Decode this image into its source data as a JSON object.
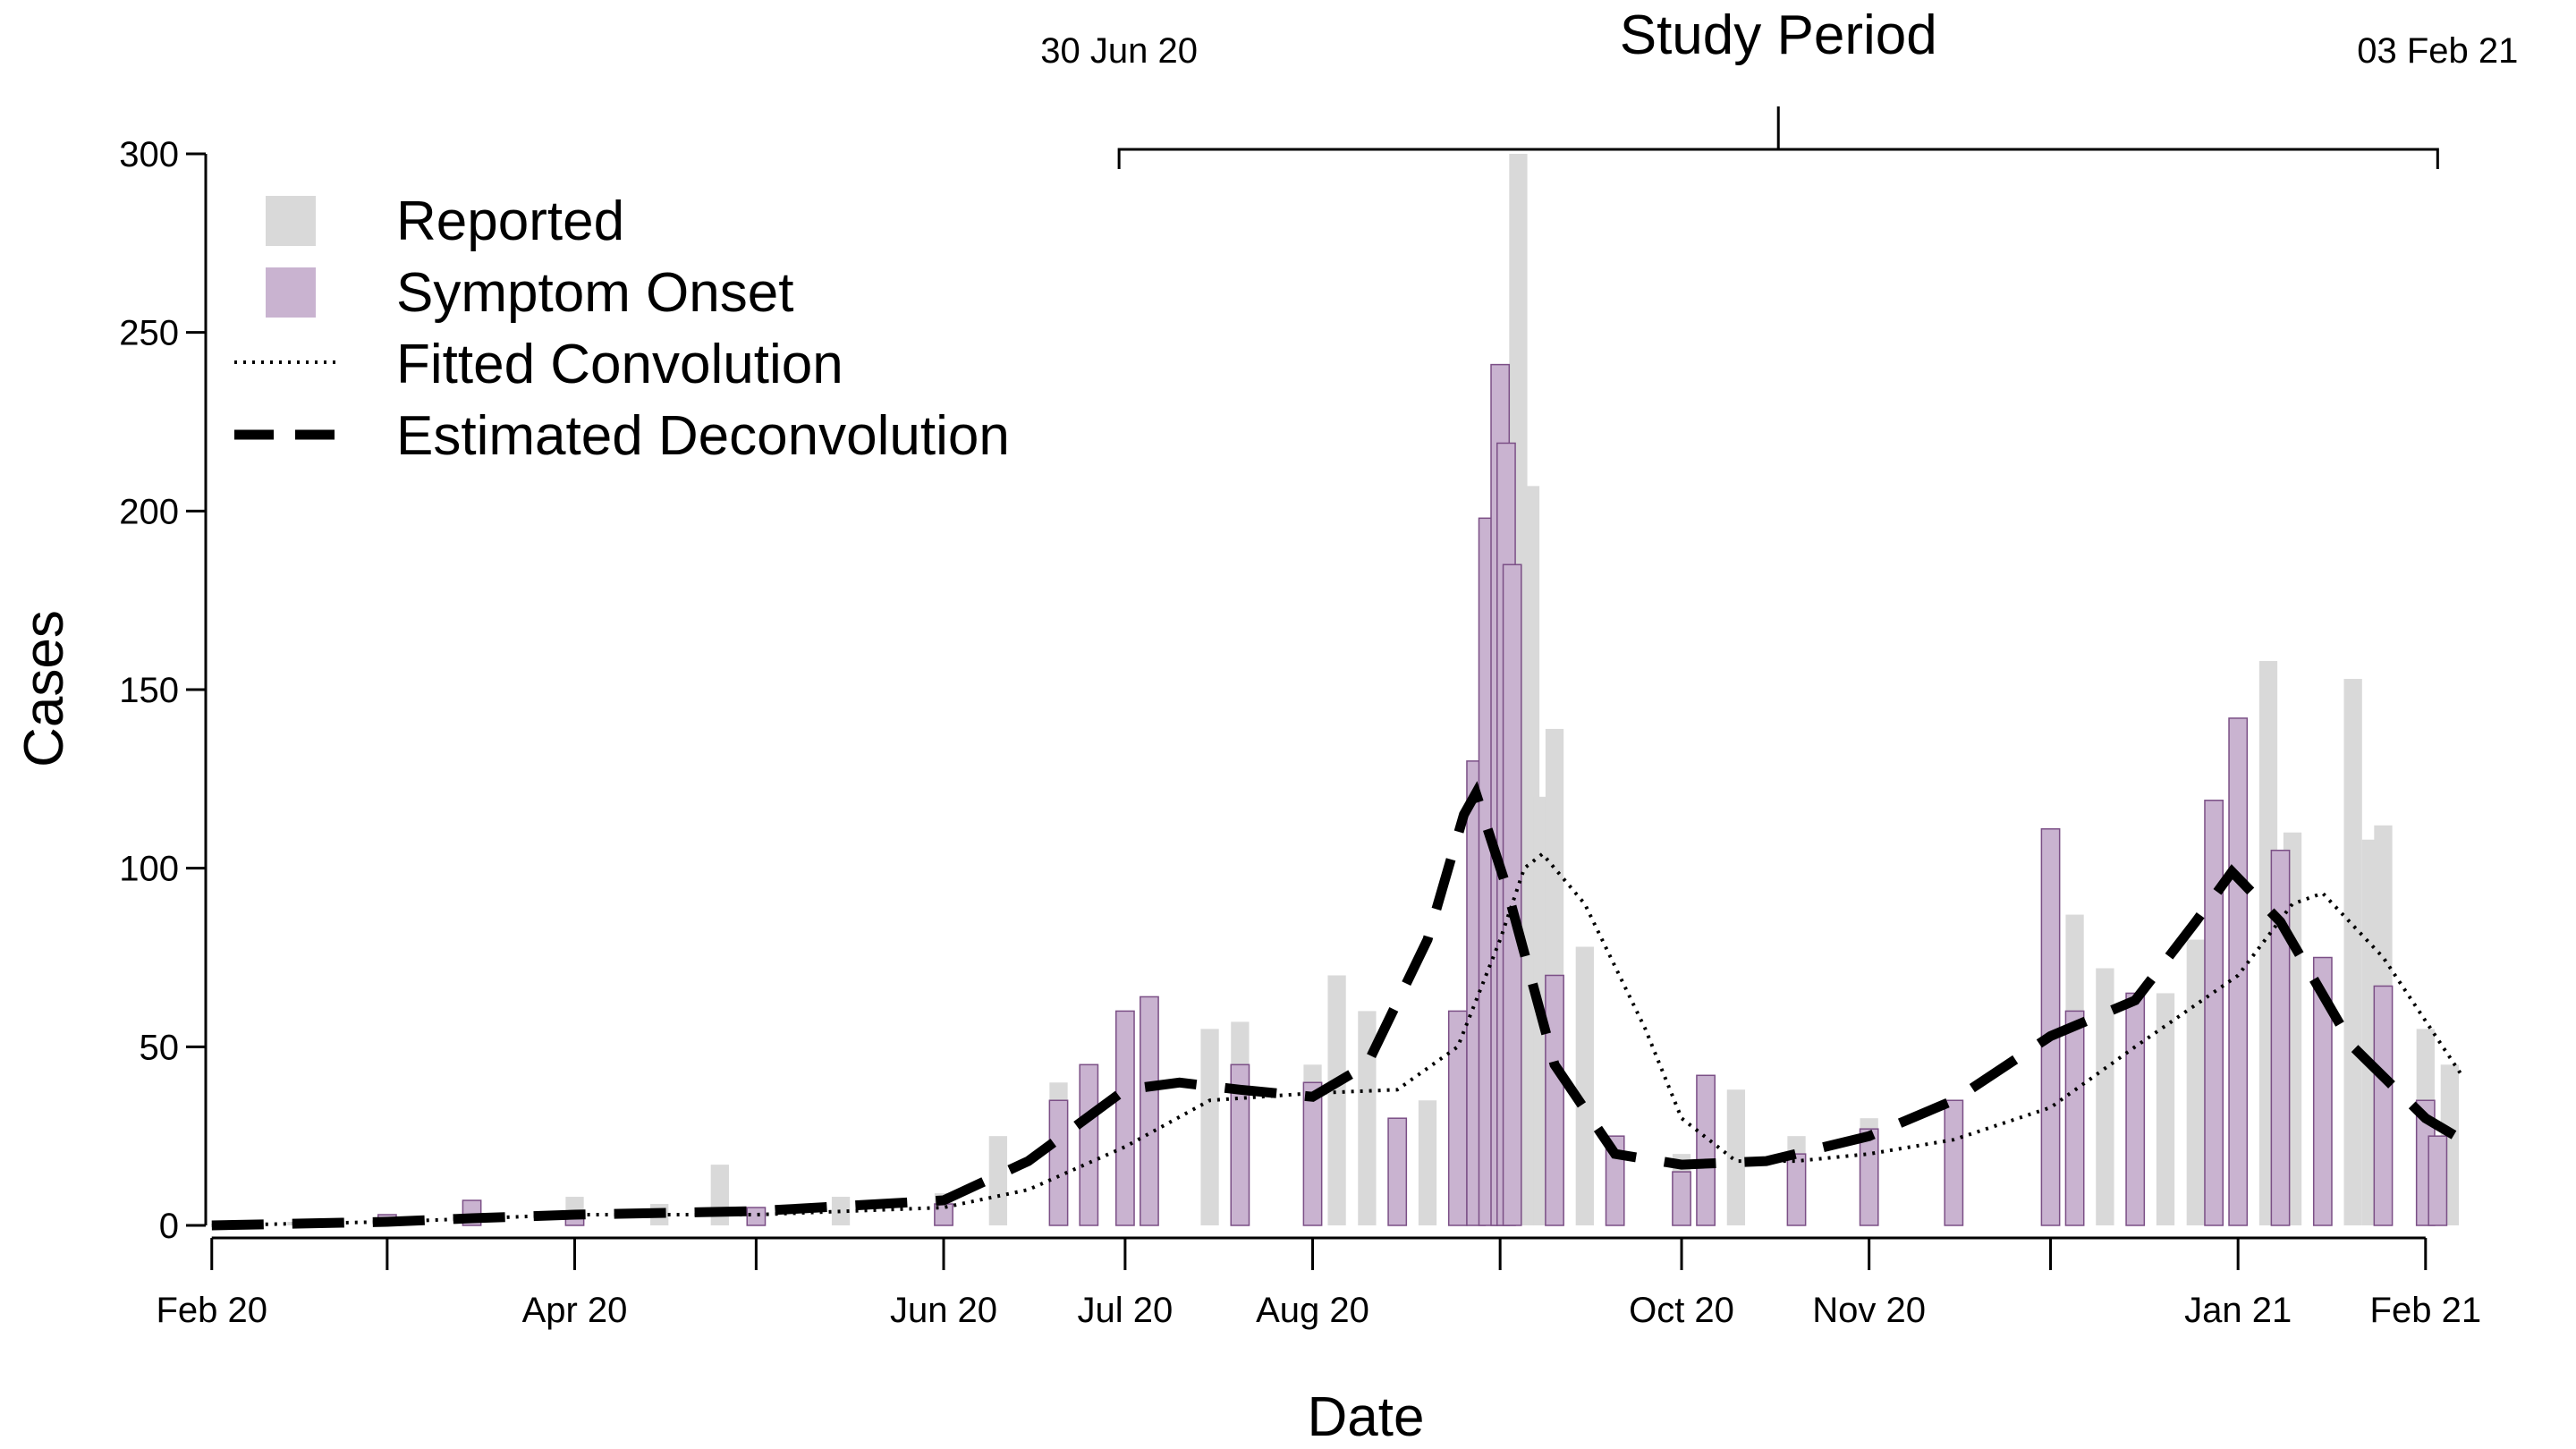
{
  "chart_data": {
    "type": "bar",
    "xlabel": "Date",
    "ylabel": "Cases",
    "xlim": [
      "2020-01-31",
      "2021-02-17"
    ],
    "ylim": [
      0,
      300
    ],
    "y_ticks": [
      0,
      50,
      100,
      150,
      200,
      250,
      300
    ],
    "x_tick_labels": [
      {
        "date": "2020-02-01",
        "label": "Feb 20"
      },
      {
        "date": "2020-03-01",
        "label": ""
      },
      {
        "date": "2020-04-01",
        "label": "Apr 20"
      },
      {
        "date": "2020-05-01",
        "label": ""
      },
      {
        "date": "2020-06-01",
        "label": "Jun 20"
      },
      {
        "date": "2020-07-01",
        "label": "Jul 20"
      },
      {
        "date": "2020-08-01",
        "label": "Aug 20"
      },
      {
        "date": "2020-09-01",
        "label": ""
      },
      {
        "date": "2020-10-01",
        "label": "Oct 20"
      },
      {
        "date": "2020-11-01",
        "label": "Nov 20"
      },
      {
        "date": "2020-12-01",
        "label": ""
      },
      {
        "date": "2021-01-01",
        "label": "Jan 21"
      },
      {
        "date": "2021-02-01",
        "label": "Feb 21"
      }
    ],
    "study_period": {
      "title": "Study Period",
      "start": "2020-06-30",
      "end": "2021-02-03",
      "start_label": "30 Jun 20",
      "end_label": "03 Feb 21"
    },
    "legend": {
      "placement": "top-left",
      "entries": [
        {
          "label": "Reported",
          "kind": "bar"
        },
        {
          "label": "Symptom Onset",
          "kind": "bar"
        },
        {
          "label": "Fitted Convolution",
          "kind": "dotted"
        },
        {
          "label": "Estimated Deconvolution",
          "kind": "dashed"
        }
      ]
    },
    "colors": {
      "reported": "#d9d9d9",
      "onset_fill": "#c9b3d0",
      "onset_stroke": "#7b4f86",
      "lines": "#000000"
    },
    "series": [
      {
        "name": "Reported",
        "type": "bar",
        "values": [
          {
            "x": "2020-02-01",
            "y": 0
          },
          {
            "x": "2020-02-15",
            "y": 1
          },
          {
            "x": "2020-03-01",
            "y": 2
          },
          {
            "x": "2020-03-15",
            "y": 5
          },
          {
            "x": "2020-04-01",
            "y": 8
          },
          {
            "x": "2020-04-15",
            "y": 6
          },
          {
            "x": "2020-04-25",
            "y": 17
          },
          {
            "x": "2020-05-01",
            "y": 5
          },
          {
            "x": "2020-05-15",
            "y": 8
          },
          {
            "x": "2020-06-01",
            "y": 9
          },
          {
            "x": "2020-06-10",
            "y": 25
          },
          {
            "x": "2020-06-20",
            "y": 40
          },
          {
            "x": "2020-07-01",
            "y": 45
          },
          {
            "x": "2020-07-15",
            "y": 55
          },
          {
            "x": "2020-07-20",
            "y": 57
          },
          {
            "x": "2020-08-01",
            "y": 45
          },
          {
            "x": "2020-08-05",
            "y": 70
          },
          {
            "x": "2020-08-10",
            "y": 60
          },
          {
            "x": "2020-08-20",
            "y": 35
          },
          {
            "x": "2020-09-01",
            "y": 120
          },
          {
            "x": "2020-09-04",
            "y": 300
          },
          {
            "x": "2020-09-05",
            "y": 110
          },
          {
            "x": "2020-09-06",
            "y": 207
          },
          {
            "x": "2020-09-08",
            "y": 120
          },
          {
            "x": "2020-09-10",
            "y": 139
          },
          {
            "x": "2020-09-15",
            "y": 78
          },
          {
            "x": "2020-09-20",
            "y": 25
          },
          {
            "x": "2020-10-01",
            "y": 20
          },
          {
            "x": "2020-10-10",
            "y": 38
          },
          {
            "x": "2020-10-20",
            "y": 25
          },
          {
            "x": "2020-11-01",
            "y": 30
          },
          {
            "x": "2020-11-15",
            "y": 35
          },
          {
            "x": "2020-12-01",
            "y": 45
          },
          {
            "x": "2020-12-05",
            "y": 87
          },
          {
            "x": "2020-12-10",
            "y": 72
          },
          {
            "x": "2020-12-20",
            "y": 65
          },
          {
            "x": "2020-12-25",
            "y": 80
          },
          {
            "x": "2021-01-01",
            "y": 105
          },
          {
            "x": "2021-01-06",
            "y": 158
          },
          {
            "x": "2021-01-10",
            "y": 110
          },
          {
            "x": "2021-01-20",
            "y": 153
          },
          {
            "x": "2021-01-23",
            "y": 108
          },
          {
            "x": "2021-01-25",
            "y": 112
          },
          {
            "x": "2021-02-01",
            "y": 55
          },
          {
            "x": "2021-02-05",
            "y": 45
          }
        ]
      },
      {
        "name": "Symptom Onset",
        "type": "bar",
        "values": [
          {
            "x": "2020-02-01",
            "y": 0
          },
          {
            "x": "2020-03-01",
            "y": 3
          },
          {
            "x": "2020-03-15",
            "y": 7
          },
          {
            "x": "2020-04-01",
            "y": 4
          },
          {
            "x": "2020-05-01",
            "y": 5
          },
          {
            "x": "2020-06-01",
            "y": 6
          },
          {
            "x": "2020-06-20",
            "y": 35
          },
          {
            "x": "2020-06-25",
            "y": 45
          },
          {
            "x": "2020-07-01",
            "y": 60
          },
          {
            "x": "2020-07-05",
            "y": 64
          },
          {
            "x": "2020-07-20",
            "y": 45
          },
          {
            "x": "2020-08-01",
            "y": 40
          },
          {
            "x": "2020-08-15",
            "y": 30
          },
          {
            "x": "2020-08-25",
            "y": 60
          },
          {
            "x": "2020-08-28",
            "y": 130
          },
          {
            "x": "2020-08-30",
            "y": 198
          },
          {
            "x": "2020-09-01",
            "y": 241
          },
          {
            "x": "2020-09-02",
            "y": 219
          },
          {
            "x": "2020-09-03",
            "y": 185
          },
          {
            "x": "2020-09-10",
            "y": 70
          },
          {
            "x": "2020-09-20",
            "y": 25
          },
          {
            "x": "2020-10-01",
            "y": 15
          },
          {
            "x": "2020-10-05",
            "y": 42
          },
          {
            "x": "2020-10-20",
            "y": 20
          },
          {
            "x": "2020-11-01",
            "y": 27
          },
          {
            "x": "2020-11-15",
            "y": 35
          },
          {
            "x": "2020-12-01",
            "y": 111
          },
          {
            "x": "2020-12-05",
            "y": 60
          },
          {
            "x": "2020-12-15",
            "y": 65
          },
          {
            "x": "2020-12-28",
            "y": 119
          },
          {
            "x": "2021-01-01",
            "y": 142
          },
          {
            "x": "2021-01-08",
            "y": 105
          },
          {
            "x": "2021-01-15",
            "y": 75
          },
          {
            "x": "2021-01-25",
            "y": 67
          },
          {
            "x": "2021-02-01",
            "y": 35
          },
          {
            "x": "2021-02-03",
            "y": 25
          }
        ]
      },
      {
        "name": "Fitted Convolution",
        "type": "line",
        "values": [
          {
            "x": "2020-02-01",
            "y": 0
          },
          {
            "x": "2020-03-01",
            "y": 1
          },
          {
            "x": "2020-04-01",
            "y": 3
          },
          {
            "x": "2020-05-01",
            "y": 3
          },
          {
            "x": "2020-06-01",
            "y": 5
          },
          {
            "x": "2020-06-15",
            "y": 10
          },
          {
            "x": "2020-07-01",
            "y": 22
          },
          {
            "x": "2020-07-15",
            "y": 35
          },
          {
            "x": "2020-08-01",
            "y": 37
          },
          {
            "x": "2020-08-15",
            "y": 38
          },
          {
            "x": "2020-08-25",
            "y": 50
          },
          {
            "x": "2020-09-01",
            "y": 80
          },
          {
            "x": "2020-09-05",
            "y": 100
          },
          {
            "x": "2020-09-08",
            "y": 104
          },
          {
            "x": "2020-09-15",
            "y": 90
          },
          {
            "x": "2020-09-25",
            "y": 55
          },
          {
            "x": "2020-10-01",
            "y": 30
          },
          {
            "x": "2020-10-10",
            "y": 18
          },
          {
            "x": "2020-10-20",
            "y": 18
          },
          {
            "x": "2020-11-01",
            "y": 20
          },
          {
            "x": "2020-11-15",
            "y": 24
          },
          {
            "x": "2020-12-01",
            "y": 33
          },
          {
            "x": "2020-12-15",
            "y": 50
          },
          {
            "x": "2021-01-01",
            "y": 70
          },
          {
            "x": "2021-01-10",
            "y": 90
          },
          {
            "x": "2021-01-15",
            "y": 93
          },
          {
            "x": "2021-01-25",
            "y": 75
          },
          {
            "x": "2021-02-07",
            "y": 42
          }
        ]
      },
      {
        "name": "Estimated Deconvolution",
        "type": "line",
        "values": [
          {
            "x": "2020-02-01",
            "y": 0
          },
          {
            "x": "2020-03-01",
            "y": 1
          },
          {
            "x": "2020-03-15",
            "y": 2
          },
          {
            "x": "2020-04-01",
            "y": 3
          },
          {
            "x": "2020-05-01",
            "y": 4
          },
          {
            "x": "2020-06-01",
            "y": 7
          },
          {
            "x": "2020-06-15",
            "y": 18
          },
          {
            "x": "2020-07-01",
            "y": 38
          },
          {
            "x": "2020-07-10",
            "y": 40
          },
          {
            "x": "2020-07-20",
            "y": 38
          },
          {
            "x": "2020-08-01",
            "y": 36
          },
          {
            "x": "2020-08-10",
            "y": 45
          },
          {
            "x": "2020-08-20",
            "y": 80
          },
          {
            "x": "2020-08-26",
            "y": 115
          },
          {
            "x": "2020-08-28",
            "y": 121
          },
          {
            "x": "2020-09-02",
            "y": 95
          },
          {
            "x": "2020-09-10",
            "y": 45
          },
          {
            "x": "2020-09-20",
            "y": 20
          },
          {
            "x": "2020-10-01",
            "y": 17
          },
          {
            "x": "2020-10-15",
            "y": 18
          },
          {
            "x": "2020-11-01",
            "y": 25
          },
          {
            "x": "2020-11-15",
            "y": 35
          },
          {
            "x": "2020-12-01",
            "y": 53
          },
          {
            "x": "2020-12-15",
            "y": 63
          },
          {
            "x": "2020-12-25",
            "y": 85
          },
          {
            "x": "2020-12-31",
            "y": 99
          },
          {
            "x": "2021-01-08",
            "y": 85
          },
          {
            "x": "2021-01-20",
            "y": 50
          },
          {
            "x": "2021-02-01",
            "y": 30
          },
          {
            "x": "2021-02-07",
            "y": 24
          }
        ]
      }
    ]
  }
}
